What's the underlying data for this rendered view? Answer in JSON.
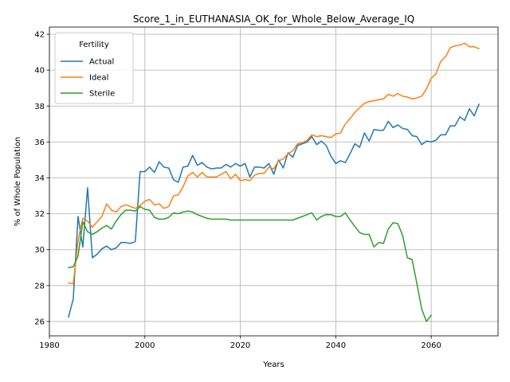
{
  "chart_data": {
    "type": "line",
    "title": "Score_1_in_EUTHANASIA_OK_for_Whole_Below_Average_IQ",
    "xlabel": "Years",
    "ylabel": "% of Whole Population",
    "xlim": [
      1980,
      2074
    ],
    "ylim": [
      25.2,
      42.4
    ],
    "xticks": [
      1980,
      2000,
      2020,
      2040,
      2060
    ],
    "yticks": [
      26,
      28,
      30,
      32,
      34,
      36,
      38,
      40,
      42
    ],
    "grid": true,
    "legend": {
      "title": "Fertility",
      "placement": "top-left"
    },
    "series": [
      {
        "name": "Actual",
        "color": "#1f77b4",
        "points": [
          [
            1984,
            26.25
          ],
          [
            1985,
            27.25
          ],
          [
            1986,
            31.85
          ],
          [
            1987,
            30.15
          ],
          [
            1988,
            33.45
          ],
          [
            1989,
            29.55
          ],
          [
            1990,
            29.75
          ],
          [
            1991,
            30.05
          ],
          [
            1992,
            30.2
          ],
          [
            1993,
            30.0
          ],
          [
            1994,
            30.1
          ],
          [
            1995,
            30.4
          ],
          [
            1996,
            30.4
          ],
          [
            1997,
            30.35
          ],
          [
            1998,
            30.45
          ],
          [
            1999,
            34.35
          ],
          [
            2000,
            34.35
          ],
          [
            2001,
            34.6
          ],
          [
            2002,
            34.3
          ],
          [
            2003,
            34.9
          ],
          [
            2004,
            34.6
          ],
          [
            2005,
            34.55
          ],
          [
            2006,
            33.9
          ],
          [
            2007,
            33.75
          ],
          [
            2008,
            34.6
          ],
          [
            2009,
            34.65
          ],
          [
            2010,
            35.25
          ],
          [
            2011,
            34.7
          ],
          [
            2012,
            34.85
          ],
          [
            2013,
            34.6
          ],
          [
            2014,
            34.5
          ],
          [
            2015,
            34.55
          ],
          [
            2016,
            34.55
          ],
          [
            2017,
            34.75
          ],
          [
            2018,
            34.6
          ],
          [
            2019,
            34.8
          ],
          [
            2020,
            34.65
          ],
          [
            2021,
            34.8
          ],
          [
            2022,
            34.05
          ],
          [
            2023,
            34.6
          ],
          [
            2024,
            34.6
          ],
          [
            2025,
            34.55
          ],
          [
            2026,
            34.8
          ],
          [
            2027,
            34.2
          ],
          [
            2028,
            35.0
          ],
          [
            2029,
            34.55
          ],
          [
            2030,
            35.4
          ],
          [
            2031,
            35.15
          ],
          [
            2032,
            35.8
          ],
          [
            2033,
            35.9
          ],
          [
            2034,
            36.0
          ],
          [
            2035,
            36.3
          ],
          [
            2036,
            35.85
          ],
          [
            2037,
            36.05
          ],
          [
            2038,
            35.8
          ],
          [
            2039,
            35.2
          ],
          [
            2040,
            34.8
          ],
          [
            2041,
            34.95
          ],
          [
            2042,
            34.85
          ],
          [
            2043,
            35.35
          ],
          [
            2044,
            35.9
          ],
          [
            2045,
            35.7
          ],
          [
            2046,
            36.5
          ],
          [
            2047,
            36.05
          ],
          [
            2048,
            36.7
          ],
          [
            2049,
            36.65
          ],
          [
            2050,
            36.65
          ],
          [
            2051,
            37.15
          ],
          [
            2052,
            36.8
          ],
          [
            2053,
            36.95
          ],
          [
            2054,
            36.75
          ],
          [
            2055,
            36.7
          ],
          [
            2056,
            36.35
          ],
          [
            2057,
            36.3
          ],
          [
            2058,
            35.85
          ],
          [
            2059,
            36.05
          ],
          [
            2060,
            36.0
          ],
          [
            2061,
            36.1
          ],
          [
            2062,
            36.4
          ],
          [
            2063,
            36.4
          ],
          [
            2064,
            36.9
          ],
          [
            2065,
            36.9
          ],
          [
            2066,
            37.4
          ],
          [
            2067,
            37.2
          ],
          [
            2068,
            37.85
          ],
          [
            2069,
            37.45
          ],
          [
            2070,
            38.1
          ]
        ]
      },
      {
        "name": "Ideal",
        "color": "#ff7f0e",
        "points": [
          [
            1984,
            28.15
          ],
          [
            1985,
            28.1
          ],
          [
            1986,
            30.5
          ],
          [
            1987,
            31.75
          ],
          [
            1988,
            31.6
          ],
          [
            1989,
            31.25
          ],
          [
            1990,
            31.55
          ],
          [
            1991,
            31.85
          ],
          [
            1992,
            32.55
          ],
          [
            1993,
            32.2
          ],
          [
            1994,
            32.1
          ],
          [
            1995,
            32.4
          ],
          [
            1996,
            32.5
          ],
          [
            1997,
            32.4
          ],
          [
            1998,
            32.3
          ],
          [
            1999,
            32.45
          ],
          [
            2000,
            32.7
          ],
          [
            2001,
            32.8
          ],
          [
            2002,
            32.5
          ],
          [
            2003,
            32.55
          ],
          [
            2004,
            32.3
          ],
          [
            2005,
            32.4
          ],
          [
            2006,
            33.0
          ],
          [
            2007,
            33.05
          ],
          [
            2008,
            33.5
          ],
          [
            2009,
            34.1
          ],
          [
            2010,
            34.3
          ],
          [
            2011,
            34.05
          ],
          [
            2012,
            34.3
          ],
          [
            2013,
            34.05
          ],
          [
            2014,
            34.05
          ],
          [
            2015,
            34.05
          ],
          [
            2016,
            34.2
          ],
          [
            2017,
            34.35
          ],
          [
            2018,
            33.95
          ],
          [
            2019,
            34.2
          ],
          [
            2020,
            33.85
          ],
          [
            2021,
            33.9
          ],
          [
            2022,
            33.85
          ],
          [
            2023,
            34.15
          ],
          [
            2024,
            34.25
          ],
          [
            2025,
            34.25
          ],
          [
            2026,
            34.6
          ],
          [
            2027,
            34.5
          ],
          [
            2028,
            34.95
          ],
          [
            2029,
            35.05
          ],
          [
            2030,
            35.35
          ],
          [
            2031,
            35.5
          ],
          [
            2032,
            35.9
          ],
          [
            2033,
            35.95
          ],
          [
            2034,
            36.1
          ],
          [
            2035,
            36.4
          ],
          [
            2036,
            36.3
          ],
          [
            2037,
            36.35
          ],
          [
            2038,
            36.3
          ],
          [
            2039,
            36.25
          ],
          [
            2040,
            36.45
          ],
          [
            2041,
            36.5
          ],
          [
            2042,
            37.0
          ],
          [
            2043,
            37.3
          ],
          [
            2044,
            37.65
          ],
          [
            2045,
            37.9
          ],
          [
            2046,
            38.15
          ],
          [
            2047,
            38.25
          ],
          [
            2048,
            38.3
          ],
          [
            2049,
            38.35
          ],
          [
            2050,
            38.4
          ],
          [
            2051,
            38.65
          ],
          [
            2052,
            38.55
          ],
          [
            2053,
            38.7
          ],
          [
            2054,
            38.55
          ],
          [
            2055,
            38.5
          ],
          [
            2056,
            38.4
          ],
          [
            2057,
            38.45
          ],
          [
            2058,
            38.55
          ],
          [
            2059,
            38.95
          ],
          [
            2060,
            39.55
          ],
          [
            2061,
            39.8
          ],
          [
            2062,
            40.5
          ],
          [
            2063,
            40.75
          ],
          [
            2064,
            41.25
          ],
          [
            2065,
            41.35
          ],
          [
            2066,
            41.4
          ],
          [
            2067,
            41.5
          ],
          [
            2068,
            41.3
          ],
          [
            2069,
            41.3
          ],
          [
            2070,
            41.2
          ]
        ]
      },
      {
        "name": "Sterile",
        "color": "#2ca02c",
        "points": [
          [
            1984,
            29.0
          ],
          [
            1985,
            29.05
          ],
          [
            1986,
            29.65
          ],
          [
            1987,
            31.55
          ],
          [
            1988,
            31.0
          ],
          [
            1989,
            30.85
          ],
          [
            1990,
            31.0
          ],
          [
            1991,
            31.2
          ],
          [
            1992,
            31.35
          ],
          [
            1993,
            31.15
          ],
          [
            1994,
            31.6
          ],
          [
            1995,
            31.95
          ],
          [
            1996,
            32.2
          ],
          [
            1997,
            32.2
          ],
          [
            1998,
            32.15
          ],
          [
            1999,
            32.4
          ],
          [
            2000,
            32.25
          ],
          [
            2001,
            32.2
          ],
          [
            2002,
            31.8
          ],
          [
            2003,
            31.7
          ],
          [
            2004,
            31.7
          ],
          [
            2005,
            31.8
          ],
          [
            2006,
            32.05
          ],
          [
            2007,
            32.0
          ],
          [
            2008,
            32.1
          ],
          [
            2009,
            32.15
          ],
          [
            2010,
            32.1
          ],
          [
            2011,
            31.95
          ],
          [
            2012,
            31.85
          ],
          [
            2013,
            31.75
          ],
          [
            2014,
            31.7
          ],
          [
            2015,
            31.7
          ],
          [
            2016,
            31.7
          ],
          [
            2017,
            31.7
          ],
          [
            2018,
            31.65
          ],
          [
            2019,
            31.65
          ],
          [
            2020,
            31.65
          ],
          [
            2021,
            31.65
          ],
          [
            2022,
            31.65
          ],
          [
            2023,
            31.65
          ],
          [
            2024,
            31.65
          ],
          [
            2025,
            31.65
          ],
          [
            2026,
            31.65
          ],
          [
            2027,
            31.65
          ],
          [
            2028,
            31.65
          ],
          [
            2029,
            31.65
          ],
          [
            2030,
            31.65
          ],
          [
            2031,
            31.65
          ],
          [
            2032,
            31.75
          ],
          [
            2033,
            31.85
          ],
          [
            2034,
            31.95
          ],
          [
            2035,
            32.05
          ],
          [
            2036,
            31.65
          ],
          [
            2037,
            31.85
          ],
          [
            2038,
            31.95
          ],
          [
            2039,
            31.95
          ],
          [
            2040,
            31.85
          ],
          [
            2041,
            31.85
          ],
          [
            2042,
            32.05
          ],
          [
            2043,
            31.65
          ],
          [
            2044,
            31.3
          ],
          [
            2045,
            30.95
          ],
          [
            2046,
            30.85
          ],
          [
            2047,
            30.85
          ],
          [
            2048,
            30.15
          ],
          [
            2049,
            30.4
          ],
          [
            2050,
            30.35
          ],
          [
            2051,
            31.15
          ],
          [
            2052,
            31.5
          ],
          [
            2053,
            31.45
          ],
          [
            2054,
            30.8
          ],
          [
            2055,
            29.55
          ],
          [
            2056,
            29.45
          ],
          [
            2057,
            28.1
          ],
          [
            2058,
            26.7
          ],
          [
            2059,
            26.0
          ],
          [
            2060,
            26.35
          ]
        ]
      }
    ]
  }
}
